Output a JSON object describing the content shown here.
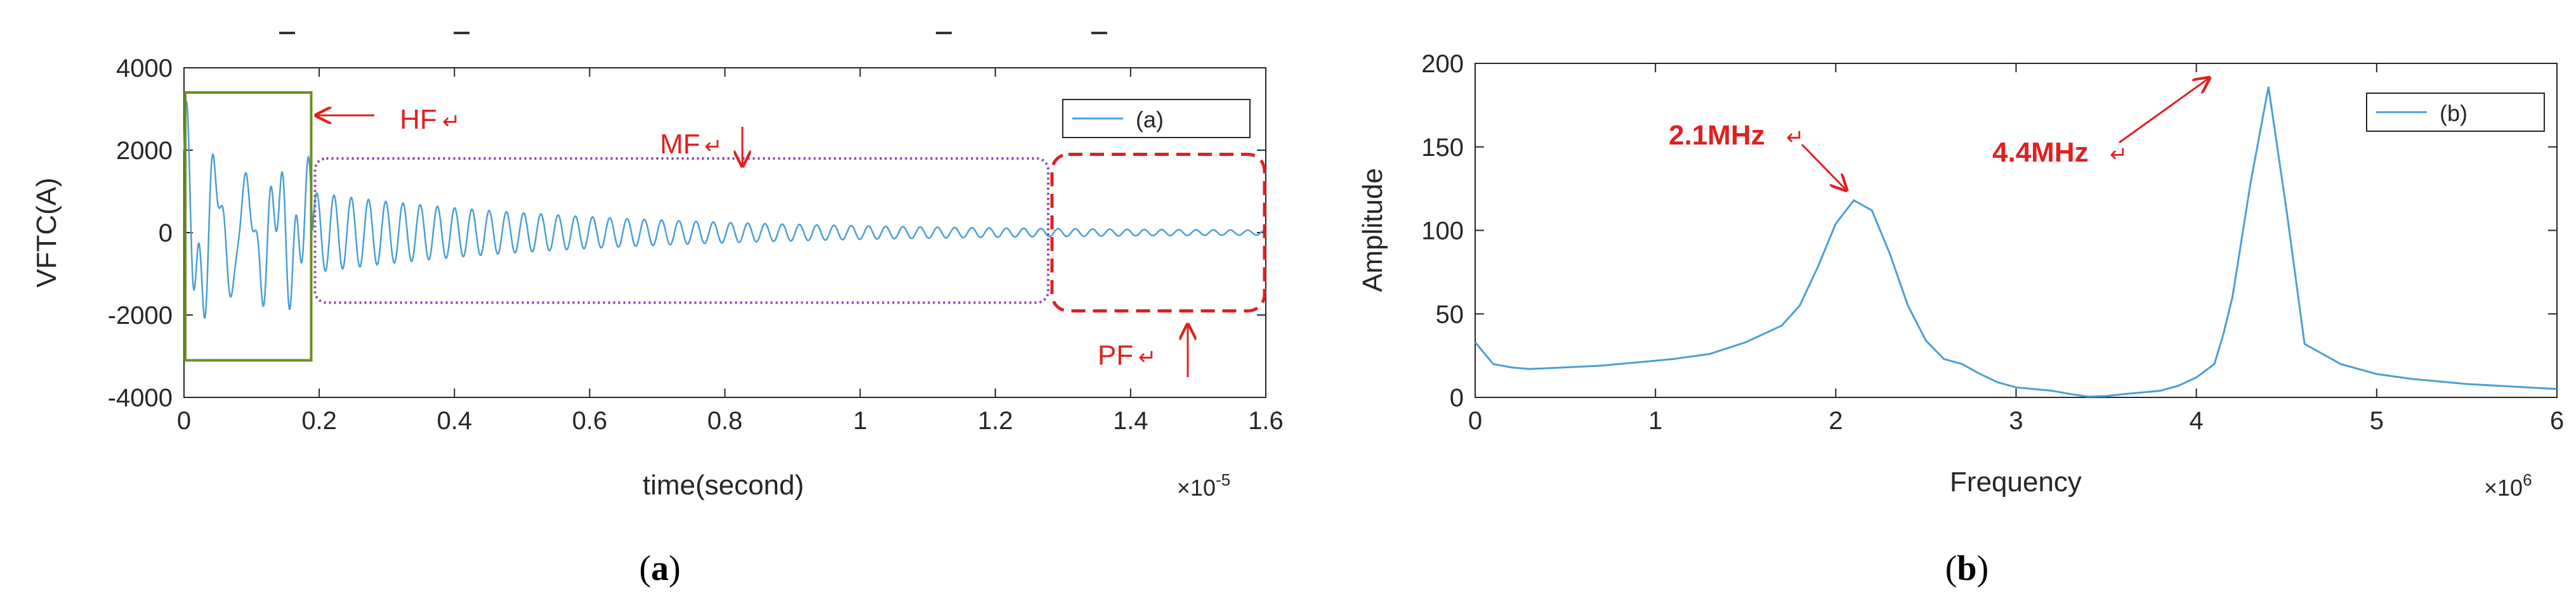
{
  "chart_data": [
    {
      "type": "line",
      "panel": "a",
      "caption": "(a)",
      "caption_letter": "a",
      "xlabel": "time(second)",
      "ylabel": "VFTC(A)",
      "xlim": [
        0,
        1.6
      ],
      "ylim": [
        -4000,
        4000
      ],
      "x_exponent": "×10",
      "x_exponent_power": "-5",
      "xticks": [
        "0",
        "0.2",
        "0.4",
        "0.6",
        "0.8",
        "1",
        "1.2",
        "1.4",
        "1.6"
      ],
      "yticks": [
        "-4000",
        "-2000",
        "0",
        "2000",
        "4000"
      ],
      "legend": "(a)",
      "legend_position": "top-right",
      "signal_description": "damped oscillatory current: HF burst (0–0.19), MF decaying oscillation (0.19–1.28), PF near-zero (1.28–1.6)",
      "annotations": [
        {
          "label": "HF",
          "region": [
            0.0,
            0.19
          ],
          "box_ylim": [
            -3100,
            3400
          ],
          "style": "solid-green"
        },
        {
          "label": "MF",
          "region": [
            0.19,
            1.28
          ],
          "box_ylim": [
            -1700,
            1800
          ],
          "style": "dotted-purple"
        },
        {
          "label": "PF",
          "region": [
            1.28,
            1.6
          ],
          "box_ylim": [
            -1900,
            1900
          ],
          "style": "dashed-red"
        }
      ],
      "series": [
        {
          "name": "(a)",
          "color": "#4a9fd5"
        }
      ]
    },
    {
      "type": "line",
      "panel": "b",
      "caption": "(b)",
      "caption_letter": "b",
      "xlabel": "Frequency",
      "ylabel": "Amplitude",
      "xlim": [
        0,
        6
      ],
      "ylim": [
        0,
        200
      ],
      "x_exponent": "×10",
      "x_exponent_power": "6",
      "xticks": [
        "0",
        "1",
        "2",
        "3",
        "4",
        "5",
        "6"
      ],
      "yticks": [
        "0",
        "50",
        "100",
        "150",
        "200"
      ],
      "legend": "(b)",
      "legend_position": "top-right",
      "annotations": [
        {
          "label": "2.1MHz",
          "x": 2.1,
          "y": 118
        },
        {
          "label": "4.4MHz",
          "x": 4.4,
          "y": 186
        }
      ],
      "series": [
        {
          "name": "(b)",
          "color": "#4a9fd5",
          "x": [
            0,
            0.1,
            0.2,
            0.3,
            0.5,
            0.7,
            0.9,
            1.1,
            1.3,
            1.5,
            1.6,
            1.7,
            1.8,
            1.9,
            2.0,
            2.1,
            2.2,
            2.3,
            2.4,
            2.5,
            2.6,
            2.7,
            2.8,
            2.9,
            3.0,
            3.2,
            3.3,
            3.4,
            3.5,
            3.6,
            3.8,
            3.9,
            4.0,
            4.1,
            4.15,
            4.2,
            4.3,
            4.4,
            4.5,
            4.6,
            4.8,
            5.0,
            5.2,
            5.5,
            6.0
          ],
          "y": [
            33,
            20,
            18,
            17,
            18,
            19,
            21,
            23,
            26,
            33,
            38,
            43,
            55,
            78,
            104,
            118,
            112,
            86,
            55,
            34,
            23,
            20,
            14,
            9,
            6,
            4,
            2,
            0.5,
            0.8,
            2,
            4,
            7,
            12,
            20,
            38,
            60,
            128,
            186,
            112,
            32,
            20,
            14,
            11,
            8,
            5
          ]
        }
      ]
    }
  ]
}
